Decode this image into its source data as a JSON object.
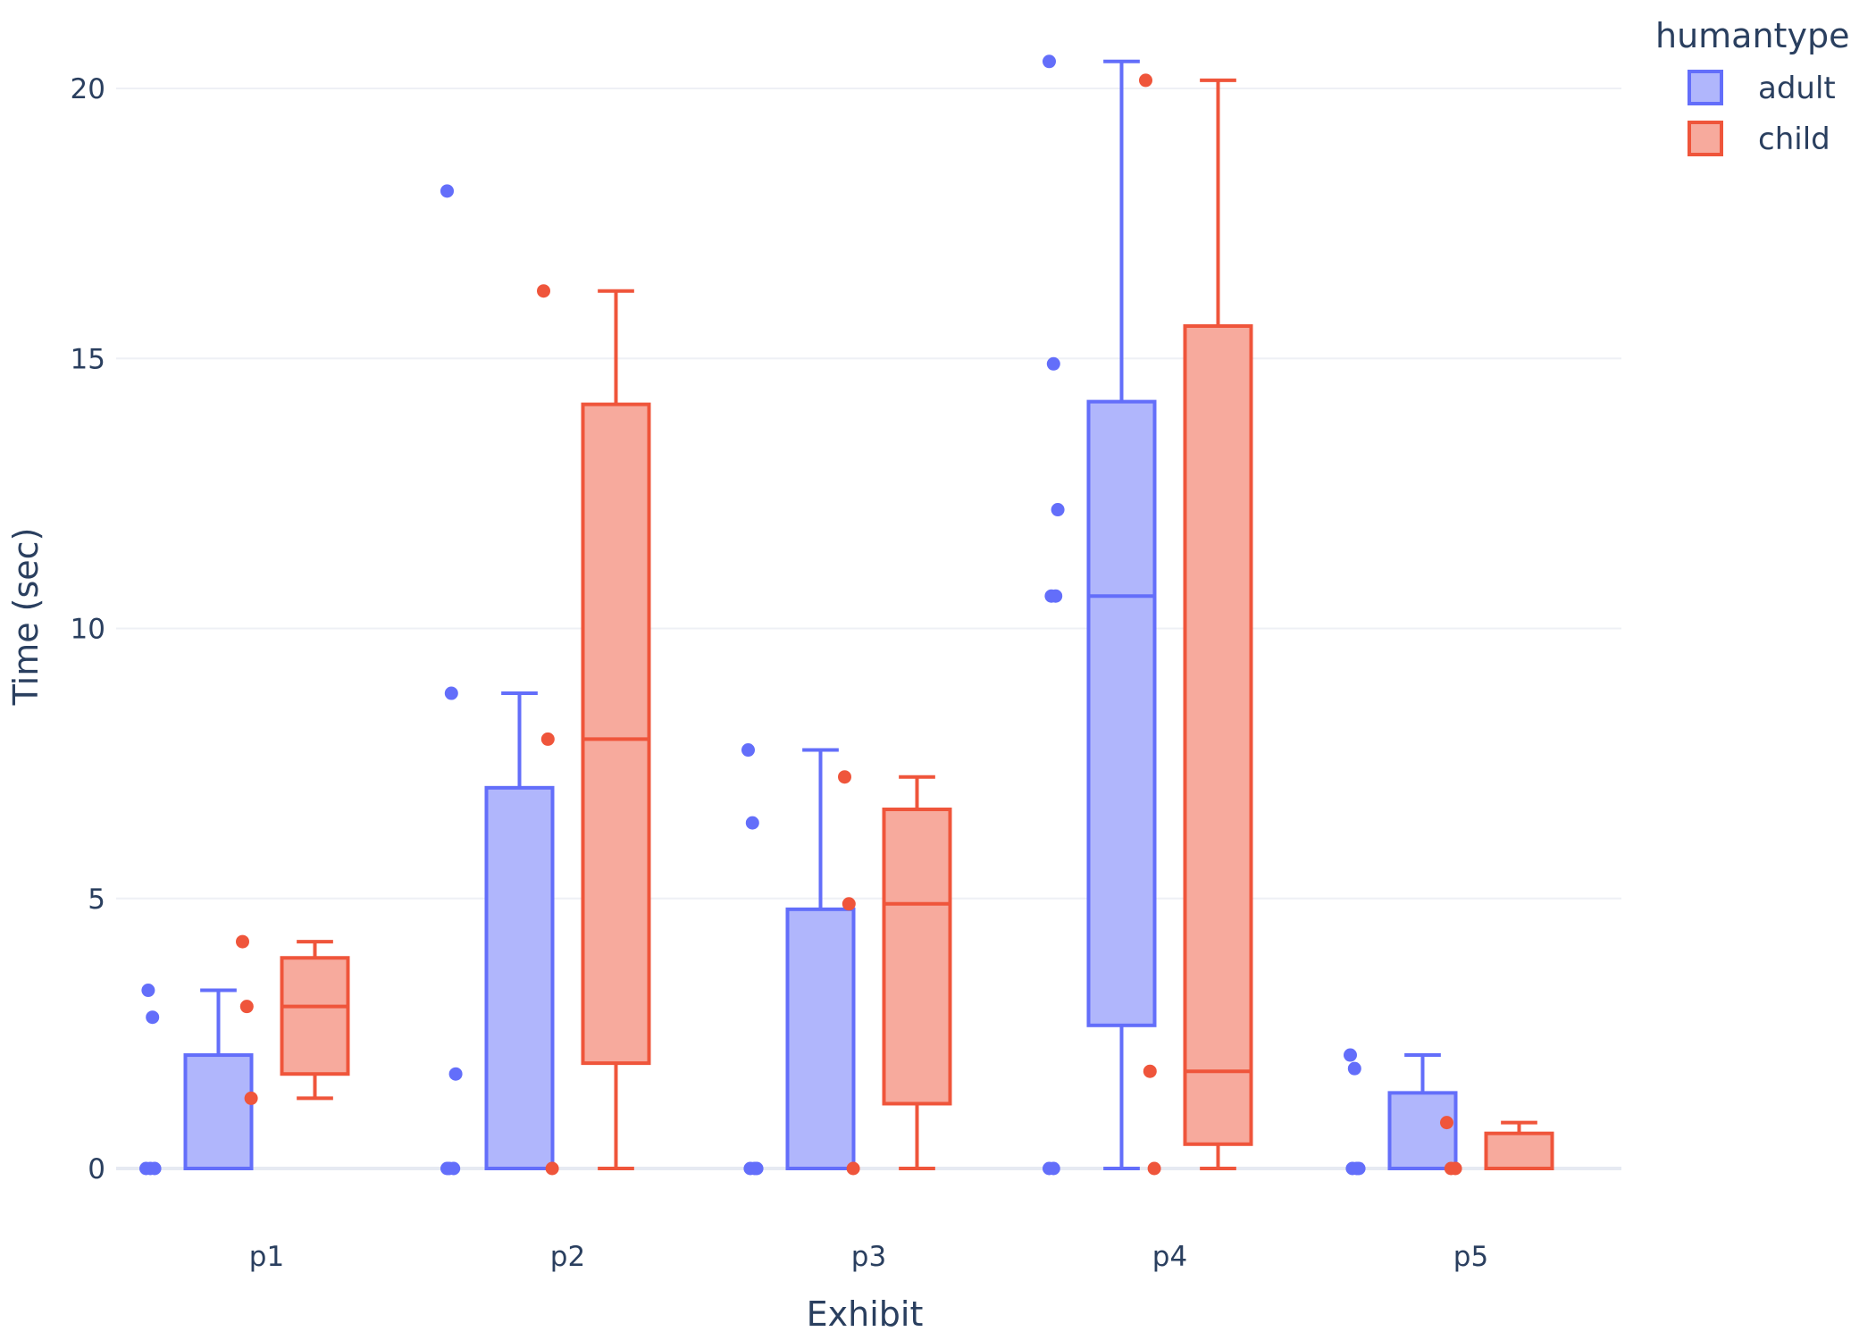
{
  "chart_data": {
    "type": "box",
    "title": "",
    "xlabel": "Exhibit",
    "ylabel": "Time (sec)",
    "categories": [
      "p1",
      "p2",
      "p3",
      "p4",
      "p5"
    ],
    "ylim": [
      -0.8,
      21.5
    ],
    "yticks": [
      0,
      5,
      10,
      15,
      20
    ],
    "grid": true,
    "legend": {
      "title": "humantype",
      "position": "top-right"
    },
    "series": [
      {
        "name": "adult",
        "color": "#636efa",
        "fill": "#b0b6fc",
        "boxes": [
          {
            "category": "p1",
            "min": 0,
            "q1": 0,
            "median": 0,
            "q3": 2.1,
            "max": 3.3,
            "points": [
              0,
              0,
              0,
              3.3,
              2.8
            ]
          },
          {
            "category": "p2",
            "min": 0,
            "q1": 0,
            "median": 0,
            "q3": 7.05,
            "max": 8.8,
            "points": [
              18.1,
              8.8,
              1.75,
              0,
              0,
              0
            ]
          },
          {
            "category": "p3",
            "min": 0,
            "q1": 0,
            "median": 0,
            "q3": 4.8,
            "max": 7.75,
            "points": [
              7.75,
              6.4,
              0,
              0,
              0
            ]
          },
          {
            "category": "p4",
            "min": 0,
            "q1": 2.65,
            "median": 10.6,
            "q3": 14.2,
            "max": 20.5,
            "points": [
              20.5,
              14.9,
              12.2,
              10.6,
              10.6,
              0,
              0
            ]
          },
          {
            "category": "p5",
            "min": 0,
            "q1": 0,
            "median": 0,
            "q3": 1.4,
            "max": 2.1,
            "points": [
              2.1,
              1.85,
              0,
              0,
              0
            ]
          }
        ]
      },
      {
        "name": "child",
        "color": "#ef553b",
        "fill": "#f7aa9d",
        "boxes": [
          {
            "category": "p1",
            "min": 1.3,
            "q1": 1.75,
            "median": 3.0,
            "q3": 3.9,
            "max": 4.2,
            "points": [
              4.2,
              3.0,
              1.3
            ]
          },
          {
            "category": "p2",
            "min": 0,
            "q1": 1.95,
            "median": 7.95,
            "q3": 14.15,
            "max": 16.25,
            "points": [
              16.25,
              7.95,
              0
            ]
          },
          {
            "category": "p3",
            "min": 0,
            "q1": 1.2,
            "median": 4.9,
            "q3": 6.65,
            "max": 7.25,
            "points": [
              7.25,
              4.9,
              0
            ]
          },
          {
            "category": "p4",
            "min": 0,
            "q1": 0.45,
            "median": 1.8,
            "q3": 15.6,
            "max": 20.15,
            "points": [
              20.15,
              1.8,
              0
            ]
          },
          {
            "category": "p5",
            "min": 0,
            "q1": 0,
            "median": 0,
            "q3": 0.65,
            "max": 0.85,
            "points": [
              0.85,
              0,
              0
            ]
          }
        ]
      }
    ]
  }
}
